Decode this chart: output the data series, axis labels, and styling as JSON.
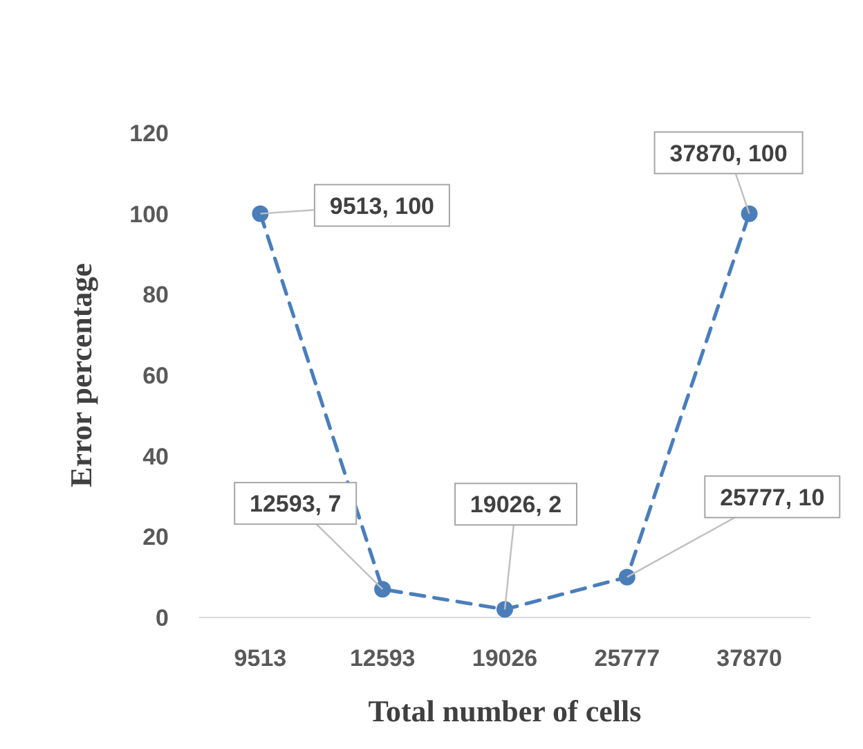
{
  "chart_data": {
    "type": "line",
    "xlabel": "Total number of cells",
    "ylabel": "Error percentage",
    "categories": [
      "9513",
      "12593",
      "19026",
      "25777",
      "37870"
    ],
    "values": [
      100,
      7,
      2,
      10,
      100
    ],
    "value_labels": [
      "9513, 100",
      "12593, 7",
      "19026, 2",
      "25777, 10",
      "37870, 100"
    ],
    "color": "#4a7ebb",
    "marker": "circle",
    "line_style": "dashed",
    "ylim": [
      0,
      120
    ],
    "yticks": [
      0,
      20,
      40,
      60,
      80,
      100,
      120
    ],
    "grid": false
  }
}
